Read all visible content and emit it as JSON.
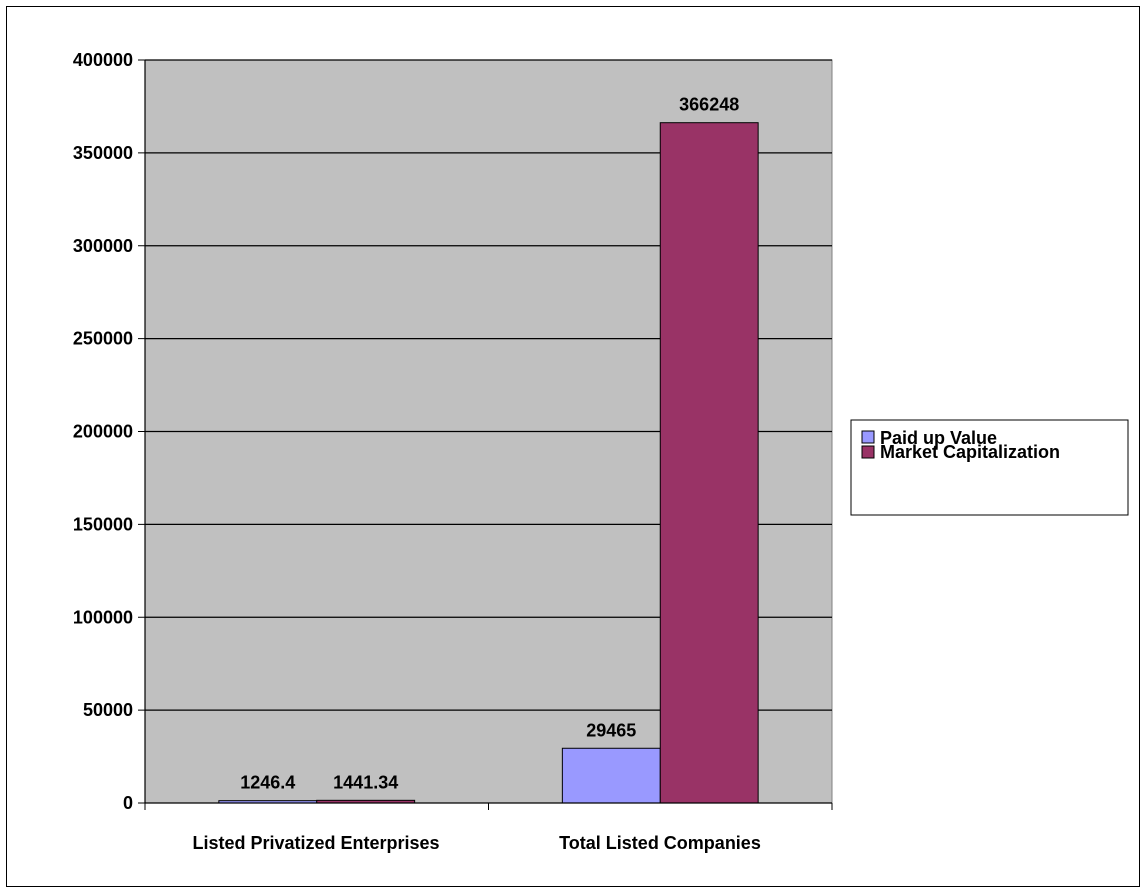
{
  "chart_data": {
    "type": "bar",
    "categories": [
      "Listed Privatized Enterprises",
      "Total Listed Companies"
    ],
    "series": [
      {
        "name": "Paid up Value",
        "values": [
          1246.4,
          29465
        ],
        "color": "#9999ff"
      },
      {
        "name": "Market Capitalization",
        "values": [
          1441.34,
          366248
        ],
        "color": "#993366"
      }
    ],
    "data_labels": [
      [
        "1246.4",
        "29465"
      ],
      [
        "1441.34",
        "366248"
      ]
    ],
    "yticks": [
      "0",
      "50000",
      "100000",
      "150000",
      "200000",
      "250000",
      "300000",
      "350000",
      "400000"
    ],
    "ylim": [
      0,
      400000
    ],
    "title": "",
    "xlabel": "",
    "ylabel": "",
    "grid": true,
    "legend_position": "right",
    "plot_background": "#c0c0c0"
  }
}
